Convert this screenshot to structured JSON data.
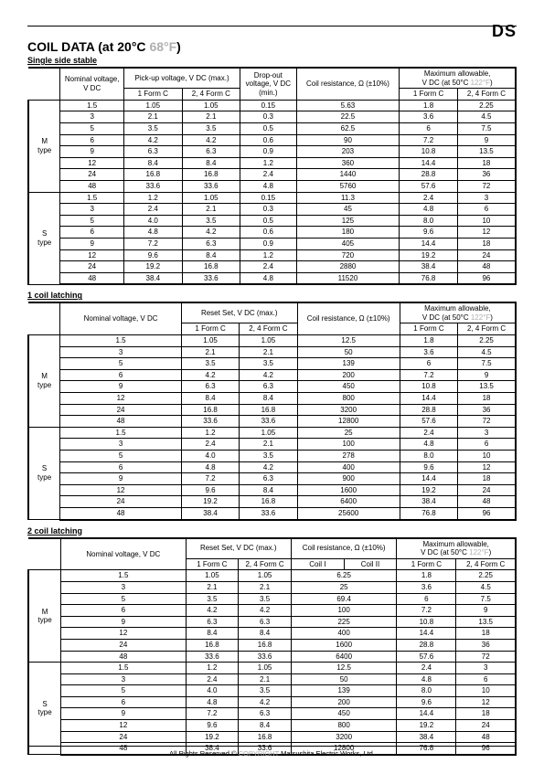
{
  "topRight": "DS",
  "title": {
    "text": "COIL DATA (at 20°C ",
    "faded": "68°F",
    "close": ")"
  },
  "section1": {
    "heading": "Single side stable",
    "cols": {
      "nominal": "Nominal voltage,\nV DC",
      "pickup": "Pick-up voltage, V DC (max.)",
      "dropout": "Drop-out\nvoltage, V DC\n(min.)",
      "coilres": "Coil resistance, Ω (±10%)",
      "maxallow": "Maximum allowable,\nV DC (at 50°C 122°F)",
      "f1": "1 Form C",
      "f24": "2, 4 Form C"
    },
    "types": [
      "M\ntype",
      "S\ntype"
    ],
    "rows": [
      [
        "1.5",
        "1.05",
        "1.05",
        "0.15",
        "5.63",
        "1.8",
        "2.25"
      ],
      [
        "3",
        "2.1",
        "2.1",
        "0.3",
        "22.5",
        "3.6",
        "4.5"
      ],
      [
        "5",
        "3.5",
        "3.5",
        "0.5",
        "62.5",
        "6",
        "7.5"
      ],
      [
        "6",
        "4.2",
        "4.2",
        "0.6",
        "90",
        "7.2",
        "9"
      ],
      [
        "9",
        "6.3",
        "6.3",
        "0.9",
        "203",
        "10.8",
        "13.5"
      ],
      [
        "12",
        "8.4",
        "8.4",
        "1.2",
        "360",
        "14.4",
        "18"
      ],
      [
        "24",
        "16.8",
        "16.8",
        "2.4",
        "1440",
        "28.8",
        "36"
      ],
      [
        "48",
        "33.6",
        "33.6",
        "4.8",
        "5760",
        "57.6",
        "72"
      ],
      [
        "1.5",
        "1.2",
        "1.05",
        "0.15",
        "11.3",
        "2.4",
        "3"
      ],
      [
        "3",
        "2.4",
        "2.1",
        "0.3",
        "45",
        "4.8",
        "6"
      ],
      [
        "5",
        "4.0",
        "3.5",
        "0.5",
        "125",
        "8.0",
        "10"
      ],
      [
        "6",
        "4.8",
        "4.2",
        "0.6",
        "180",
        "9.6",
        "12"
      ],
      [
        "9",
        "7.2",
        "6.3",
        "0.9",
        "405",
        "14.4",
        "18"
      ],
      [
        "12",
        "9.6",
        "8.4",
        "1.2",
        "720",
        "19.2",
        "24"
      ],
      [
        "24",
        "19.2",
        "16.8",
        "2.4",
        "2880",
        "38.4",
        "48"
      ],
      [
        "48",
        "38.4",
        "33.6",
        "4.8",
        "11520",
        "76.8",
        "96"
      ]
    ]
  },
  "section2": {
    "heading": "1 coil latching",
    "cols": {
      "nominal": "Nominal voltage, V DC",
      "reset": "Reset Set, V DC (max.)",
      "coilres": "Coil resistance, Ω (±10%)",
      "maxallow": "Maximum allowable,\nV DC (at 50°C 122°F)",
      "f1": "1 Form C",
      "f24": "2, 4 Form C"
    },
    "types": [
      "M\ntype",
      "S\ntype"
    ],
    "rows": [
      [
        "1.5",
        "1.05",
        "1.05",
        "12.5",
        "1.8",
        "2.25"
      ],
      [
        "3",
        "2.1",
        "2.1",
        "50",
        "3.6",
        "4.5"
      ],
      [
        "5",
        "3.5",
        "3.5",
        "139",
        "6",
        "7.5"
      ],
      [
        "6",
        "4.2",
        "4.2",
        "200",
        "7.2",
        "9"
      ],
      [
        "9",
        "6.3",
        "6.3",
        "450",
        "10.8",
        "13.5"
      ],
      [
        "12",
        "8.4",
        "8.4",
        "800",
        "14.4",
        "18"
      ],
      [
        "24",
        "16.8",
        "16.8",
        "3200",
        "28.8",
        "36"
      ],
      [
        "48",
        "33.6",
        "33.6",
        "12800",
        "57.6",
        "72"
      ],
      [
        "1.5",
        "1.2",
        "1.05",
        "25",
        "2.4",
        "3"
      ],
      [
        "3",
        "2.4",
        "2.1",
        "100",
        "4.8",
        "6"
      ],
      [
        "5",
        "4.0",
        "3.5",
        "278",
        "8.0",
        "10"
      ],
      [
        "6",
        "4.8",
        "4.2",
        "400",
        "9.6",
        "12"
      ],
      [
        "9",
        "7.2",
        "6.3",
        "900",
        "14.4",
        "18"
      ],
      [
        "12",
        "9.6",
        "8.4",
        "1600",
        "19.2",
        "24"
      ],
      [
        "24",
        "19.2",
        "16.8",
        "6400",
        "38.4",
        "48"
      ],
      [
        "48",
        "38.4",
        "33.6",
        "25600",
        "76.8",
        "96"
      ]
    ]
  },
  "section3": {
    "heading": "2 coil latching",
    "cols": {
      "nominal": "Nominal voltage, V DC",
      "reset": "Reset Set, V DC (max.)",
      "coilres": "Coil resistance, Ω (±10%)",
      "maxallow": "Maximum allowable,\nV DC (at 50°C 122°F)",
      "f1": "1 Form C",
      "f24": "2, 4 Form C",
      "coil1": "Coil I",
      "coil2": "Coil II"
    },
    "types": [
      "M\ntype",
      "S\ntype"
    ],
    "rows": [
      [
        "1.5",
        "1.05",
        "1.05",
        "6.25",
        "",
        "1.8",
        "2.25"
      ],
      [
        "3",
        "2.1",
        "2.1",
        "25",
        "",
        "3.6",
        "4.5"
      ],
      [
        "5",
        "3.5",
        "3.5",
        "69.4",
        "",
        "6",
        "7.5"
      ],
      [
        "6",
        "4.2",
        "4.2",
        "100",
        "",
        "7.2",
        "9"
      ],
      [
        "9",
        "6.3",
        "6.3",
        "225",
        "",
        "10.8",
        "13.5"
      ],
      [
        "12",
        "8.4",
        "8.4",
        "400",
        "",
        "14.4",
        "18"
      ],
      [
        "24",
        "16.8",
        "16.8",
        "1600",
        "",
        "28.8",
        "36"
      ],
      [
        "48",
        "33.6",
        "33.6",
        "6400",
        "",
        "57.6",
        "72"
      ],
      [
        "1.5",
        "1.2",
        "1.05",
        "12.5",
        "",
        "2.4",
        "3"
      ],
      [
        "3",
        "2.4",
        "2.1",
        "50",
        "",
        "4.8",
        "6"
      ],
      [
        "5",
        "4.0",
        "3.5",
        "139",
        "",
        "8.0",
        "10"
      ],
      [
        "6",
        "4.8",
        "4.2",
        "200",
        "",
        "9.6",
        "12"
      ],
      [
        "9",
        "7.2",
        "6.3",
        "450",
        "",
        "14.4",
        "18"
      ],
      [
        "12",
        "9.6",
        "8.4",
        "800",
        "",
        "19.2",
        "24"
      ],
      [
        "24",
        "19.2",
        "16.8",
        "3200",
        "",
        "38.4",
        "48"
      ],
      [
        "48",
        "38.4",
        "33.6",
        "12800",
        "",
        "76.8",
        "96"
      ]
    ]
  },
  "footer": {
    "left": "All Rights Reserved © ",
    "copyrt": "COPYRIGHT",
    "right": " Matsushita Electric Works, Ltd."
  }
}
